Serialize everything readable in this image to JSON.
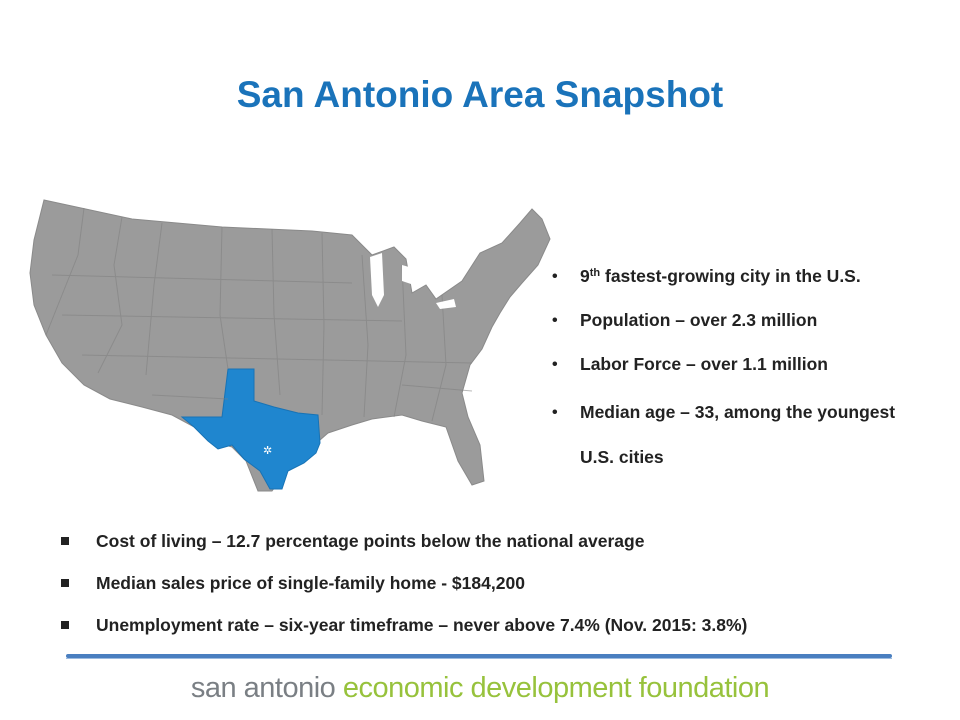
{
  "slide": {
    "title": "San Antonio Area Snapshot",
    "highlights": [
      {
        "prefix": "9",
        "sup": "th",
        "text": " fastest-growing city in the U.S."
      },
      {
        "text": "Population – over 2.3 million"
      },
      {
        "text": "Labor Force – over 1.1 million"
      },
      {
        "text": "Median age – 33, among the youngest U.S. cities"
      }
    ],
    "facts": [
      "Cost of living – 12.7 percentage points below the national average",
      "Median sales price of single-family home - $184,200",
      "Unemployment rate – six-year timeframe – never above 7.4% (Nov. 2015: 3.8%)"
    ],
    "footer": {
      "part1": "san antonio ",
      "part2": "economic development foundation"
    }
  },
  "map": {
    "colors": {
      "states": "#9b9b9b",
      "highlight": "#1f86cf",
      "borders": "#7f7f7f",
      "star": "#ffffff"
    },
    "icon": "us-map-texas-highlighted"
  }
}
